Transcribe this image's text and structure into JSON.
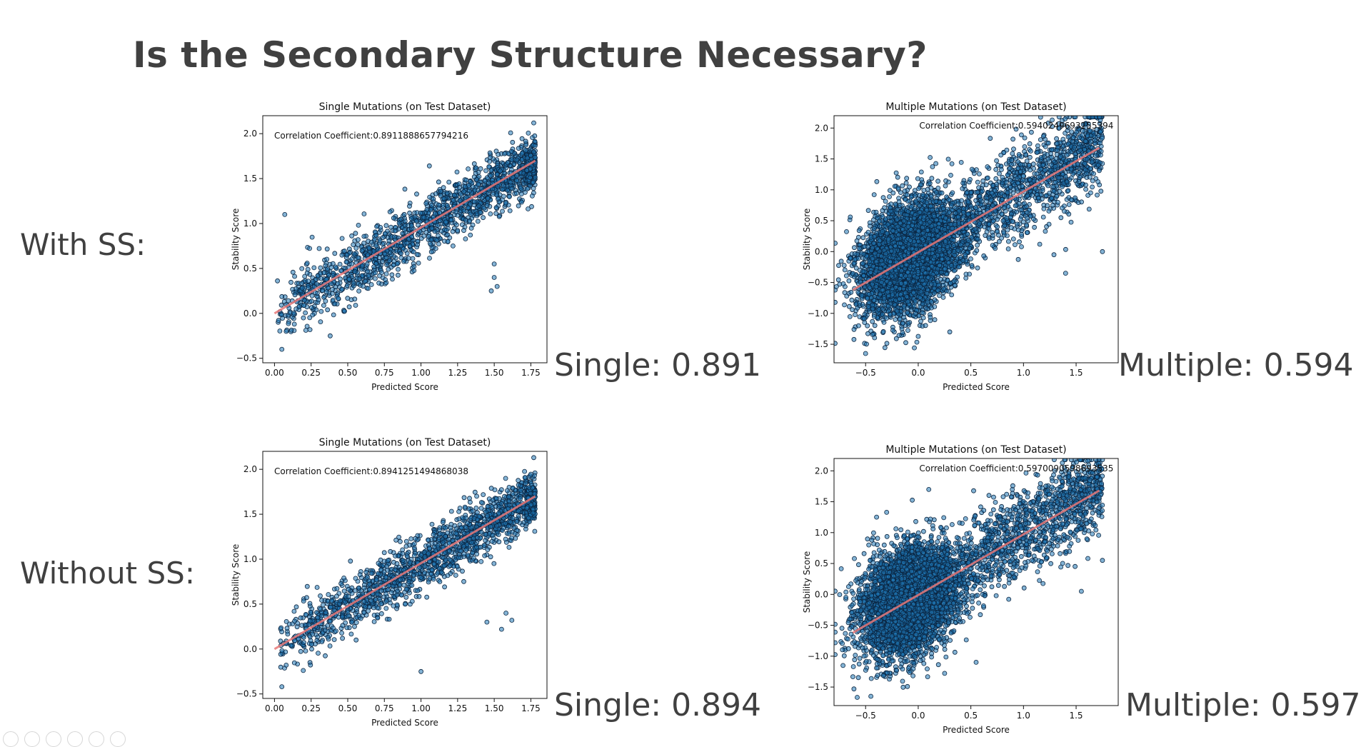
{
  "slide": {
    "title": "Is the Secondary Structure Necessary?",
    "row_labels": [
      "With SS:",
      "Without SS:"
    ],
    "scores": {
      "with_single": "Single: 0.891",
      "with_multiple": "Multiple: 0.594",
      "without_single": "Single: 0.894",
      "without_multiple": "Multiple: 0.597"
    }
  },
  "colors": {
    "point_fill": "#1f77b4",
    "point_edge": "#0b2540",
    "fit_line": "#e87878"
  },
  "chart_data": [
    {
      "type": "scatter",
      "title": "Single Mutations (on Test Dataset)",
      "xlabel": "Predicted Score",
      "ylabel": "Stability Score",
      "annotation": "Correlation Coefficient:0.8911888657794216",
      "xlim": [
        -0.08,
        1.86
      ],
      "ylim": [
        -0.55,
        2.2
      ],
      "xticks": [
        0.0,
        0.25,
        0.5,
        0.75,
        1.0,
        1.25,
        1.5,
        1.75
      ],
      "xticklabels": [
        "0.00",
        "0.25",
        "0.50",
        "0.75",
        "1.00",
        "1.25",
        "1.50",
        "1.75"
      ],
      "yticks": [
        -0.5,
        0.0,
        0.5,
        1.0,
        1.5,
        2.0
      ],
      "yticklabels": [
        "−0.5",
        "0.0",
        "0.5",
        "1.0",
        "1.5",
        "2.0"
      ],
      "fit_line": {
        "x": [
          0.0,
          1.78
        ],
        "y": [
          0.0,
          1.7
        ]
      },
      "cloud": {
        "n": 1500,
        "x_min": 0.02,
        "x_max": 1.78,
        "slope": 0.95,
        "intercept": 0.0,
        "noise": 0.17,
        "seed": 11
      },
      "outliers": [
        [
          0.05,
          -0.4
        ],
        [
          0.08,
          -0.2
        ],
        [
          0.38,
          -0.25
        ],
        [
          1.5,
          0.4
        ],
        [
          1.52,
          0.3
        ],
        [
          1.48,
          0.25
        ],
        [
          0.07,
          1.1
        ],
        [
          1.77,
          2.12
        ],
        [
          1.5,
          0.55
        ]
      ]
    },
    {
      "type": "scatter",
      "title": "Multiple Mutations (on Test Dataset)",
      "xlabel": "Predicted Score",
      "ylabel": "Stability Score",
      "annotation": "Correlation Coefficient:0.5940249693255394",
      "xlim": [
        -0.8,
        1.9
      ],
      "ylim": [
        -1.8,
        2.2
      ],
      "xticks": [
        -0.5,
        0.0,
        0.5,
        1.0,
        1.5
      ],
      "xticklabels": [
        "−0.5",
        "0.0",
        "0.5",
        "1.0",
        "1.5"
      ],
      "yticks": [
        -1.5,
        -1.0,
        -0.5,
        0.0,
        0.5,
        1.0,
        1.5,
        2.0
      ],
      "yticklabels": [
        "−1.5",
        "−1.0",
        "−0.5",
        "0.0",
        "0.5",
        "1.0",
        "1.5",
        "2.0"
      ],
      "fit_line": {
        "x": [
          -0.62,
          1.72
        ],
        "y": [
          -0.62,
          1.68
        ]
      },
      "cloud": {
        "n": 4500,
        "center": [
          -0.1,
          -0.1
        ],
        "spread": [
          0.22,
          0.42
        ],
        "tail_n": 1400,
        "tail_x_max": 1.75,
        "slope": 1.0,
        "noise": 0.45,
        "seed": 23
      },
      "outliers": [
        [
          1.75,
          0.0
        ],
        [
          1.4,
          -0.35
        ],
        [
          -0.5,
          -1.65
        ],
        [
          0.3,
          -1.3
        ]
      ]
    },
    {
      "type": "scatter",
      "title": "Single Mutations (on Test Dataset)",
      "xlabel": "Predicted Score",
      "ylabel": "Stability Score",
      "annotation": "Correlation Coefficient:0.8941251494868038",
      "xlim": [
        -0.08,
        1.86
      ],
      "ylim": [
        -0.55,
        2.2
      ],
      "xticks": [
        0.0,
        0.25,
        0.5,
        0.75,
        1.0,
        1.25,
        1.5,
        1.75
      ],
      "xticklabels": [
        "0.00",
        "0.25",
        "0.50",
        "0.75",
        "1.00",
        "1.25",
        "1.50",
        "1.75"
      ],
      "yticks": [
        -0.5,
        0.0,
        0.5,
        1.0,
        1.5,
        2.0
      ],
      "yticklabels": [
        "−0.5",
        "0.0",
        "0.5",
        "1.0",
        "1.5",
        "2.0"
      ],
      "fit_line": {
        "x": [
          0.0,
          1.78
        ],
        "y": [
          0.0,
          1.7
        ]
      },
      "cloud": {
        "n": 1500,
        "x_min": 0.02,
        "x_max": 1.78,
        "slope": 0.95,
        "intercept": 0.0,
        "noise": 0.16,
        "seed": 37
      },
      "outliers": [
        [
          0.05,
          -0.42
        ],
        [
          0.08,
          -0.18
        ],
        [
          1.0,
          -0.25
        ],
        [
          1.45,
          0.3
        ],
        [
          1.58,
          0.4
        ],
        [
          1.62,
          0.32
        ],
        [
          1.77,
          2.13
        ],
        [
          1.55,
          0.22
        ]
      ]
    },
    {
      "type": "scatter",
      "title": "Multiple Mutations (on Test Dataset)",
      "xlabel": "Predicted Score",
      "ylabel": "Stability Score",
      "annotation": "Correlation Coefficient:0.5970090598693535",
      "xlim": [
        -0.8,
        1.9
      ],
      "ylim": [
        -1.8,
        2.2
      ],
      "xticks": [
        -0.5,
        0.0,
        0.5,
        1.0,
        1.5
      ],
      "xticklabels": [
        "−0.5",
        "0.0",
        "0.5",
        "1.0",
        "1.5"
      ],
      "yticks": [
        -1.5,
        -1.0,
        -0.5,
        0.0,
        0.5,
        1.0,
        1.5,
        2.0
      ],
      "yticklabels": [
        "−1.5",
        "−1.0",
        "−0.5",
        "0.0",
        "0.5",
        "1.0",
        "1.5",
        "2.0"
      ],
      "fit_line": {
        "x": [
          -0.62,
          1.72
        ],
        "y": [
          -0.62,
          1.68
        ]
      },
      "cloud": {
        "n": 4500,
        "center": [
          -0.1,
          -0.1
        ],
        "spread": [
          0.22,
          0.42
        ],
        "tail_n": 1400,
        "tail_x_max": 1.75,
        "slope": 1.0,
        "noise": 0.45,
        "seed": 59
      },
      "outliers": [
        [
          1.75,
          0.55
        ],
        [
          1.55,
          0.05
        ],
        [
          -0.45,
          -1.65
        ],
        [
          0.55,
          -1.1
        ]
      ]
    }
  ]
}
